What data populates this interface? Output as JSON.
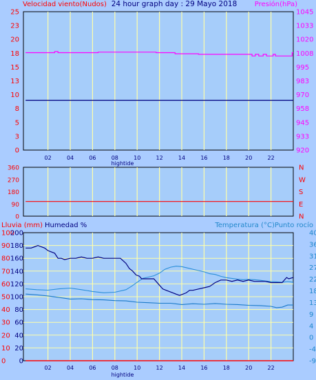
{
  "header": {
    "wind_label": "Velocidad viento(Nudos)",
    "title": "24 hour graph day : 29 Mayo 2018",
    "pressure_label": "Presión(hPa)"
  },
  "colors": {
    "background": "#aaccff",
    "plot_bg": "#a6cdfa",
    "grid": "#ffffaa",
    "wind": "#000080",
    "pressure": "#ff00ff",
    "direction": "#ff0000",
    "humidity": "#000080",
    "temperature": "#2a8ed8",
    "dewpoint": "#1878c8",
    "rain": "#ff0000",
    "label_red": "#ff0000",
    "label_navy": "#000080",
    "label_blue": "#2288cc",
    "label_magenta": "#ff00ff"
  },
  "x_axis": {
    "ticks": [
      "02",
      "04",
      "06",
      "08",
      "10",
      "12",
      "14",
      "16",
      "18",
      "20",
      "22"
    ],
    "tick_hours": [
      2,
      4,
      6,
      8,
      10,
      12,
      14,
      16,
      18,
      20,
      22
    ],
    "hightide_label": "hightide",
    "hightide_hour": 8.6,
    "range": [
      -0.2,
      24
    ]
  },
  "chart_data": [
    {
      "type": "line",
      "name": "wind-pressure",
      "left_axis": {
        "ticks": [
          "0",
          "3",
          "5",
          "8",
          "10",
          "13",
          "15",
          "18",
          "20",
          "23",
          "25"
        ],
        "range": [
          0,
          25
        ]
      },
      "right_axis": {
        "ticks": [
          "920",
          "933",
          "945",
          "958",
          "970",
          "983",
          "995",
          "1008",
          "1020",
          "1033",
          "1045"
        ],
        "range": [
          920,
          1045
        ]
      },
      "series": [
        {
          "name": "Velocidad viento(Nudos)",
          "axis": "left",
          "x": [
            0,
            24
          ],
          "y": [
            9,
            9
          ]
        },
        {
          "name": "Presión(hPa)",
          "axis": "right",
          "x": [
            0,
            2.6,
            2.6,
            2.9,
            2.9,
            6.5,
            6.5,
            11.7,
            11.7,
            13.4,
            13.4,
            15.5,
            15.5,
            20.3,
            20.3,
            20.6,
            20.6,
            20.9,
            20.9,
            21.3,
            21.3,
            21.6,
            21.6,
            22.2,
            22.2,
            22.4,
            22.4,
            23.9,
            23.9,
            24
          ],
          "y": [
            1008,
            1008,
            1009,
            1009,
            1008,
            1008,
            1008.5,
            1008.5,
            1008,
            1008,
            1007,
            1007,
            1006.5,
            1006.5,
            1005,
            1005,
            1006.5,
            1006.5,
            1005,
            1005,
            1006.5,
            1006.5,
            1005,
            1005,
            1006.5,
            1006.5,
            1005,
            1005,
            1008,
            1008
          ]
        }
      ]
    },
    {
      "type": "line",
      "name": "wind-direction",
      "left_axis": {
        "ticks": [
          "0",
          "90",
          "180",
          "270",
          "360"
        ],
        "range": [
          0,
          360
        ]
      },
      "right_axis": {
        "ticks": [
          "N",
          "E",
          "S",
          "W",
          "N"
        ]
      },
      "series": [
        {
          "name": "direction",
          "x": [
            0,
            24
          ],
          "y": [
            108,
            108
          ]
        }
      ]
    },
    {
      "type": "line",
      "name": "humidity-temperature",
      "legend": {
        "rain": "Lluvia (mm)",
        "humidity": "Humedad %",
        "temperature": "Temperatura (°C)Punto rocío"
      },
      "left_axis_rain": {
        "ticks": [
          "0",
          "10",
          "20",
          "30",
          "40",
          "50",
          "60",
          "70",
          "80",
          "90",
          "100"
        ],
        "range": [
          0,
          100
        ]
      },
      "left_axis_humidity": {
        "ticks": [
          "0",
          "20",
          "40",
          "60",
          "80",
          "100",
          "120",
          "140",
          "160",
          "180",
          "200"
        ]
      },
      "right_axis": {
        "ticks": [
          "-9",
          "-4",
          "0",
          "4",
          "9",
          "13",
          "18",
          "22",
          "27",
          "31",
          "36",
          "40"
        ],
        "range": [
          -9,
          40
        ]
      },
      "series": [
        {
          "name": "Humedad %",
          "axis": "left",
          "x": [
            0,
            0.5,
            0.8,
            1.1,
            1.4,
            1.7,
            2.0,
            2.3,
            2.6,
            2.9,
            3.2,
            3.5,
            4.0,
            4.5,
            5.0,
            5.5,
            6.0,
            6.5,
            7.0,
            7.5,
            8.0,
            8.5,
            9.0,
            9.3,
            9.6,
            9.9,
            10.2,
            10.4,
            11.0,
            11.5,
            12.0,
            12.3,
            12.6,
            12.9,
            13.2,
            13.5,
            13.8,
            14.1,
            14.4,
            14.7,
            15.0,
            15.5,
            16.0,
            16.5,
            17.0,
            17.5,
            18.0,
            18.5,
            19.0,
            19.5,
            20.0,
            20.5,
            21.0,
            21.5,
            22.0,
            22.5,
            23.0,
            23.4,
            23.6,
            24
          ],
          "y": [
            88,
            88,
            89,
            90,
            89,
            88,
            86,
            85,
            84,
            80,
            80,
            79,
            80,
            80,
            81,
            80,
            80,
            81,
            80,
            80,
            80,
            80,
            76,
            72,
            70,
            67,
            66,
            64,
            64,
            64,
            59,
            56,
            55,
            54,
            53,
            52,
            51,
            52,
            53,
            55,
            55,
            56,
            57,
            58,
            61,
            63,
            63,
            62,
            63,
            62,
            63,
            62,
            62,
            62,
            61,
            61,
            61,
            65,
            64,
            65
          ]
        },
        {
          "name": "Temperatura (°C)",
          "axis": "right",
          "x": [
            0,
            1,
            2,
            3,
            4,
            5,
            6,
            7,
            8,
            9,
            9.5,
            10,
            10.5,
            11,
            11.5,
            12,
            12.5,
            13,
            13.5,
            14,
            14.5,
            15,
            15.5,
            16,
            16.5,
            17,
            17.5,
            18,
            18.5,
            19,
            19.5,
            20,
            20.5,
            21,
            21.5,
            22,
            22.5,
            23,
            23.5,
            24
          ],
          "y": [
            18.5,
            18.2,
            18.0,
            18.5,
            18.8,
            18.2,
            17.5,
            17.0,
            17.2,
            18.2,
            19.5,
            21.0,
            22.5,
            23.0,
            23.5,
            24.5,
            26.0,
            26.8,
            27.2,
            27.0,
            26.5,
            26.0,
            25.5,
            25.0,
            24.3,
            24.0,
            23.3,
            22.8,
            22.5,
            22.2,
            22.0,
            22.1,
            22.0,
            21.8,
            21.5,
            21.3,
            21.2,
            21.0,
            21.3,
            21.0
          ]
        },
        {
          "name": "Punto rocío",
          "axis": "right",
          "x": [
            0,
            1,
            2,
            3,
            4,
            5,
            6,
            7,
            8,
            9,
            10,
            11,
            12,
            13,
            14,
            15,
            16,
            17,
            18,
            19,
            20,
            21,
            22,
            22.5,
            23,
            23.5,
            24
          ],
          "y": [
            16.5,
            16.2,
            15.8,
            15.2,
            14.6,
            14.7,
            14.4,
            14.3,
            14.0,
            13.9,
            13.4,
            13.2,
            13.0,
            13.0,
            12.5,
            12.8,
            12.6,
            12.9,
            12.6,
            12.5,
            12.2,
            12.1,
            11.8,
            11.3,
            11.5,
            12.3,
            12.3
          ]
        },
        {
          "name": "Lluvia (mm)",
          "axis": "left",
          "x": [
            0,
            24
          ],
          "y": [
            0,
            0
          ]
        }
      ]
    }
  ]
}
